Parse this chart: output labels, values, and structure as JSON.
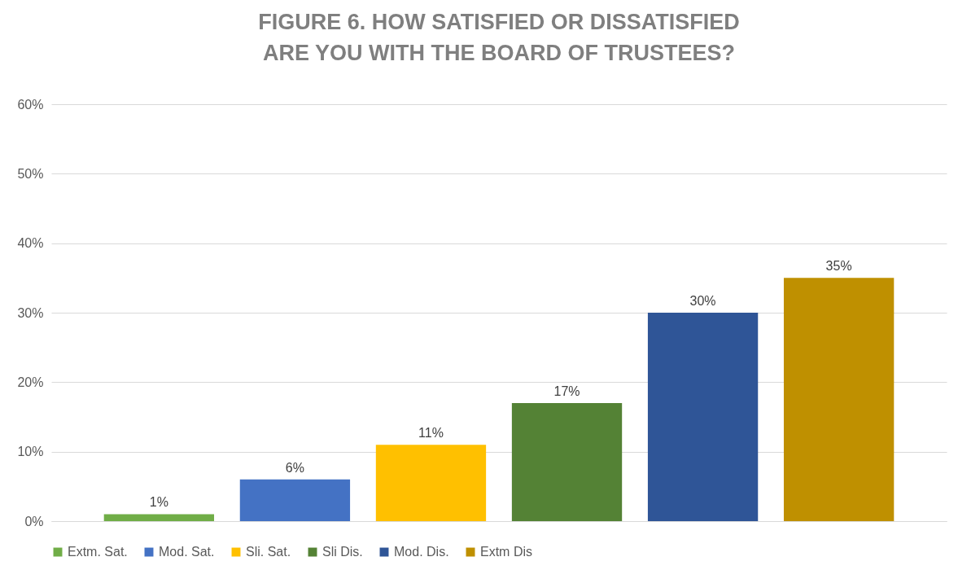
{
  "chart_data": {
    "type": "bar",
    "title": "FIGURE 6. HOW SATISFIED OR DISSATISFIED ARE YOU WITH THE BOARD OF TRUSTEES?",
    "categories": [
      null
    ],
    "series": [
      {
        "name": "Extm. Sat.",
        "color": "#70ad47",
        "values": [
          1
        ],
        "value_labels": [
          "1%"
        ]
      },
      {
        "name": "Mod. Sat.",
        "color": "#4472c4",
        "values": [
          6
        ],
        "value_labels": [
          "6%"
        ]
      },
      {
        "name": "Sli. Sat.",
        "color": "#ffc000",
        "values": [
          11
        ],
        "value_labels": [
          "11%"
        ]
      },
      {
        "name": "Sli Dis.",
        "color": "#548235",
        "values": [
          17
        ],
        "value_labels": [
          "17%"
        ]
      },
      {
        "name": "Mod. Dis.",
        "color": "#2f5597",
        "values": [
          30
        ],
        "value_labels": [
          "30%"
        ]
      },
      {
        "name": "Extm Dis",
        "color": "#bf9000",
        "values": [
          35
        ],
        "value_labels": [
          "35%"
        ]
      }
    ],
    "ylim": [
      0,
      60
    ],
    "yticks": [
      {
        "value": 0,
        "label": "0%"
      },
      {
        "value": 10,
        "label": "10%"
      },
      {
        "value": 20,
        "label": "20%"
      },
      {
        "value": 30,
        "label": "30%"
      },
      {
        "value": 40,
        "label": "40%"
      },
      {
        "value": 50,
        "label": "50%"
      },
      {
        "value": 60,
        "label": "60%"
      }
    ],
    "grid": "y",
    "legend": "bottom",
    "tick_labels": "y"
  }
}
